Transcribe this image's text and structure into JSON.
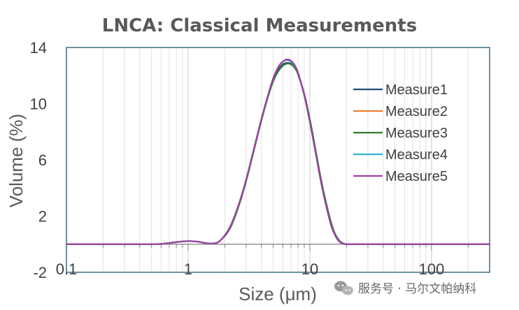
{
  "chart_data": {
    "type": "line",
    "title": "LNCA: Classical Measurements",
    "xlabel": "Size (μm)",
    "ylabel": "Volume (%)",
    "xscale": "log",
    "xlim": [
      0.1,
      300
    ],
    "ylim": [
      -2,
      14
    ],
    "xticks": [
      0.1,
      1,
      10,
      100
    ],
    "xtick_labels": [
      "0.1",
      "1",
      "10",
      "100"
    ],
    "yticks": [
      -2,
      2,
      6,
      10,
      14
    ],
    "ytick_labels": [
      "-2",
      "2",
      "6",
      "10",
      "14"
    ],
    "grid": "vertical major and minor (log decades)",
    "legend_position": "right",
    "x": [
      0.1,
      0.2,
      0.4,
      0.6,
      0.8,
      1.0,
      1.2,
      1.5,
      1.8,
      2.2,
      2.6,
      3.0,
      3.5,
      4.0,
      4.5,
      5.0,
      5.5,
      6.0,
      6.5,
      7.0,
      7.5,
      8.0,
      9.0,
      10.0,
      11.0,
      12.0,
      13.0,
      14.0,
      15.0,
      16.0,
      17.0,
      18.0,
      19.0,
      20.0,
      21.0,
      25.0,
      50.0,
      100.0,
      300.0
    ],
    "series": [
      {
        "name": "Measure1",
        "color": "#1f4e79",
        "values": [
          0,
          0,
          0,
          0.02,
          0.15,
          0.22,
          0.18,
          0.05,
          0.2,
          1.2,
          2.8,
          4.6,
          6.9,
          8.9,
          10.5,
          11.7,
          12.4,
          12.8,
          12.9,
          12.85,
          12.6,
          12.1,
          10.6,
          8.8,
          6.9,
          5.1,
          3.6,
          2.4,
          1.4,
          0.75,
          0.35,
          0.12,
          0.03,
          0,
          0,
          0,
          0,
          0,
          0
        ]
      },
      {
        "name": "Measure2",
        "color": "#ed7d31",
        "values": [
          0,
          0,
          0,
          0.02,
          0.15,
          0.22,
          0.18,
          0.05,
          0.2,
          1.2,
          2.8,
          4.6,
          6.9,
          8.9,
          10.5,
          11.8,
          12.6,
          13.0,
          13.1,
          13.0,
          12.7,
          12.2,
          10.6,
          8.7,
          6.8,
          5.0,
          3.5,
          2.3,
          1.3,
          0.7,
          0.3,
          0.1,
          0.02,
          0,
          0,
          0,
          0,
          0,
          0
        ]
      },
      {
        "name": "Measure3",
        "color": "#2e7d32",
        "values": [
          0,
          0,
          0,
          0.02,
          0.15,
          0.22,
          0.18,
          0.05,
          0.2,
          1.1,
          2.7,
          4.5,
          6.8,
          8.8,
          10.4,
          11.6,
          12.3,
          12.7,
          12.85,
          12.8,
          12.55,
          12.1,
          10.7,
          8.9,
          7.0,
          5.2,
          3.7,
          2.5,
          1.5,
          0.8,
          0.4,
          0.15,
          0.04,
          0,
          0,
          0,
          0,
          0,
          0
        ]
      },
      {
        "name": "Measure4",
        "color": "#2ab7d6",
        "values": [
          0,
          0,
          0,
          0.02,
          0.15,
          0.22,
          0.18,
          0.05,
          0.2,
          1.2,
          2.8,
          4.6,
          6.9,
          8.9,
          10.5,
          11.8,
          12.6,
          13.0,
          13.1,
          13.0,
          12.7,
          12.2,
          10.6,
          8.7,
          6.8,
          5.0,
          3.5,
          2.3,
          1.3,
          0.7,
          0.3,
          0.1,
          0.02,
          0,
          0,
          0,
          0,
          0,
          0
        ]
      },
      {
        "name": "Measure5",
        "color": "#a040a0",
        "values": [
          0,
          0,
          0,
          0.02,
          0.15,
          0.22,
          0.18,
          0.05,
          0.2,
          1.2,
          2.8,
          4.6,
          6.9,
          8.9,
          10.5,
          11.8,
          12.6,
          13.0,
          13.15,
          13.05,
          12.75,
          12.2,
          10.6,
          8.7,
          6.8,
          5.0,
          3.5,
          2.3,
          1.3,
          0.7,
          0.3,
          0.1,
          0.02,
          0,
          0,
          0,
          0,
          0,
          0
        ]
      }
    ]
  },
  "watermark": {
    "icon": "wechat-icon",
    "text": "服务号 · 马尔文帕纳科"
  }
}
